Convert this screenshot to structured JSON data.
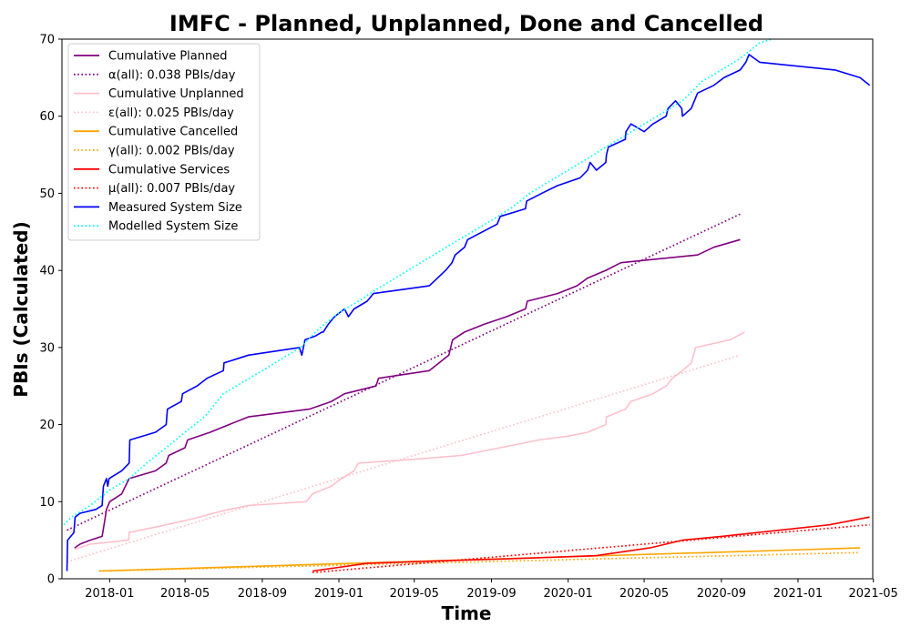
{
  "chart_data": {
    "type": "line",
    "title": "IMFC - Planned, Unplanned, Done  and Cancelled",
    "xlabel": "Time",
    "ylabel": "PBIs (Calculated)",
    "xlim": [
      "2017-10-17",
      "2021-04-30"
    ],
    "ylim": [
      0,
      70
    ],
    "x_ticks": [
      "2018-01",
      "2018-05",
      "2018-09",
      "2019-01",
      "2019-05",
      "2019-09",
      "2020-01",
      "2020-05",
      "2020-09",
      "2021-01",
      "2021-05"
    ],
    "y_ticks": [
      0,
      10,
      20,
      30,
      40,
      50,
      60,
      70
    ],
    "grid": false,
    "legend_position": "top-left",
    "series": [
      {
        "name": "Cumulative Planned",
        "style": "solid",
        "color": "#800080",
        "points": [
          [
            "2017-11-06",
            4
          ],
          [
            "2017-11-15",
            4.5
          ],
          [
            "2017-12-01",
            5
          ],
          [
            "2017-12-20",
            5.5
          ],
          [
            "2017-12-24",
            7.5
          ],
          [
            "2017-12-27",
            9
          ],
          [
            "2018-01-01",
            10
          ],
          [
            "2018-01-20",
            11
          ],
          [
            "2018-02-01",
            13
          ],
          [
            "2018-03-15",
            14
          ],
          [
            "2018-04-01",
            15
          ],
          [
            "2018-04-05",
            16
          ],
          [
            "2018-05-01",
            17
          ],
          [
            "2018-05-05",
            18
          ],
          [
            "2018-06-10",
            19
          ],
          [
            "2018-07-10",
            20
          ],
          [
            "2018-08-10",
            21
          ],
          [
            "2018-11-15",
            22
          ],
          [
            "2018-12-20",
            23
          ],
          [
            "2019-01-10",
            24
          ],
          [
            "2019-03-01",
            25
          ],
          [
            "2019-03-05",
            26
          ],
          [
            "2019-05-25",
            27
          ],
          [
            "2019-06-25",
            29
          ],
          [
            "2019-07-01",
            31
          ],
          [
            "2019-07-20",
            32
          ],
          [
            "2019-08-20",
            33
          ],
          [
            "2019-09-25",
            34
          ],
          [
            "2019-10-25",
            35
          ],
          [
            "2019-10-28",
            36
          ],
          [
            "2019-12-15",
            37
          ],
          [
            "2020-01-15",
            38
          ],
          [
            "2020-02-01",
            39
          ],
          [
            "2020-03-01",
            40
          ],
          [
            "2020-03-25",
            41
          ],
          [
            "2020-05-01",
            41.3
          ],
          [
            "2020-07-25",
            42
          ],
          [
            "2020-08-20",
            43
          ],
          [
            "2020-10-01",
            44
          ]
        ]
      },
      {
        "name": "α(all): 0.038 PBIs/day",
        "style": "dotted",
        "color": "#800080",
        "points": [
          [
            "2017-10-25",
            6.3
          ],
          [
            "2020-10-01",
            47.3
          ]
        ]
      },
      {
        "name": "Cumulative Unplanned",
        "style": "solid",
        "color": "#ffc0cb",
        "points": [
          [
            "2017-11-06",
            3.8
          ],
          [
            "2017-12-01",
            4.5
          ],
          [
            "2018-01-31",
            5
          ],
          [
            "2018-02-01",
            6
          ],
          [
            "2018-04-01",
            7
          ],
          [
            "2018-05-15",
            7.8
          ],
          [
            "2018-06-15",
            8.5
          ],
          [
            "2018-07-10",
            9
          ],
          [
            "2018-08-10",
            9.5
          ],
          [
            "2018-11-10",
            10
          ],
          [
            "2018-11-20",
            11
          ],
          [
            "2018-12-20",
            12
          ],
          [
            "2019-01-05",
            13
          ],
          [
            "2019-01-25",
            14
          ],
          [
            "2019-02-01",
            15
          ],
          [
            "2019-05-01",
            15.5
          ],
          [
            "2019-07-15",
            16
          ],
          [
            "2019-09-15",
            17
          ],
          [
            "2019-11-15",
            18
          ],
          [
            "2020-01-01",
            18.5
          ],
          [
            "2020-02-01",
            19
          ],
          [
            "2020-03-01",
            20
          ],
          [
            "2020-03-02",
            21
          ],
          [
            "2020-04-01",
            22
          ],
          [
            "2020-04-10",
            23
          ],
          [
            "2020-05-15",
            24
          ],
          [
            "2020-06-05",
            25
          ],
          [
            "2020-06-15",
            26
          ],
          [
            "2020-07-01",
            27
          ],
          [
            "2020-07-15",
            28
          ],
          [
            "2020-07-22",
            30
          ],
          [
            "2020-09-15",
            31
          ],
          [
            "2020-10-08",
            32
          ]
        ]
      },
      {
        "name": "ε(all): 0.025 PBIs/day",
        "style": "dotted",
        "color": "#ffc0cb",
        "points": [
          [
            "2017-10-25",
            2.2
          ],
          [
            "2020-10-01",
            29
          ]
        ]
      },
      {
        "name": "Cumulative Cancelled",
        "style": "solid",
        "color": "#ffa500",
        "points": [
          [
            "2017-12-15",
            1
          ],
          [
            "2021-04-10",
            4
          ]
        ]
      },
      {
        "name": "γ(all): 0.002 PBIs/day",
        "style": "dotted",
        "color": "#ffa500",
        "points": [
          [
            "2017-12-15",
            1
          ],
          [
            "2021-04-10",
            3.4
          ]
        ]
      },
      {
        "name": "Cumulative Services",
        "style": "solid",
        "color": "#ff0000",
        "points": [
          [
            "2018-11-20",
            1
          ],
          [
            "2019-02-15",
            2
          ],
          [
            "2019-06-01",
            2.3
          ],
          [
            "2019-10-01",
            2.6
          ],
          [
            "2020-02-15",
            3
          ],
          [
            "2020-05-10",
            4
          ],
          [
            "2020-07-01",
            5
          ],
          [
            "2020-09-01",
            5.5
          ],
          [
            "2021-02-20",
            7
          ],
          [
            "2021-04-25",
            8
          ]
        ]
      },
      {
        "name": "μ(all): 0.007 PBIs/day",
        "style": "dotted",
        "color": "#ff0000",
        "points": [
          [
            "2018-11-20",
            0.8
          ],
          [
            "2021-04-25",
            7
          ]
        ]
      },
      {
        "name": "Measured System Size",
        "style": "solid",
        "color": "#0000ff",
        "points": [
          [
            "2017-10-25",
            1
          ],
          [
            "2017-10-26",
            5
          ],
          [
            "2017-11-05",
            6
          ],
          [
            "2017-11-07",
            8
          ],
          [
            "2017-11-15",
            8.5
          ],
          [
            "2017-12-10",
            9
          ],
          [
            "2017-12-20",
            9.5
          ],
          [
            "2017-12-22",
            12
          ],
          [
            "2017-12-27",
            13
          ],
          [
            "2017-12-29",
            12
          ],
          [
            "2017-12-31",
            13
          ],
          [
            "2018-01-20",
            14
          ],
          [
            "2018-02-01",
            15
          ],
          [
            "2018-02-02",
            18
          ],
          [
            "2018-03-15",
            19
          ],
          [
            "2018-04-01",
            20
          ],
          [
            "2018-04-03",
            22
          ],
          [
            "2018-04-25",
            23
          ],
          [
            "2018-04-27",
            24
          ],
          [
            "2018-05-20",
            25
          ],
          [
            "2018-06-05",
            26
          ],
          [
            "2018-07-01",
            27
          ],
          [
            "2018-07-02",
            28
          ],
          [
            "2018-08-10",
            29
          ],
          [
            "2018-10-30",
            30
          ],
          [
            "2018-11-03",
            29
          ],
          [
            "2018-11-08",
            31
          ],
          [
            "2018-11-25",
            31.5
          ],
          [
            "2018-12-05",
            32
          ],
          [
            "2018-12-07",
            32
          ],
          [
            "2018-12-15",
            33
          ],
          [
            "2018-12-25",
            34
          ],
          [
            "2019-01-10",
            35
          ],
          [
            "2019-01-16",
            34
          ],
          [
            "2019-01-25",
            35
          ],
          [
            "2019-02-15",
            36
          ],
          [
            "2019-02-25",
            37
          ],
          [
            "2019-05-25",
            38
          ],
          [
            "2019-06-20",
            40
          ],
          [
            "2019-06-30",
            41
          ],
          [
            "2019-07-05",
            42
          ],
          [
            "2019-07-20",
            43
          ],
          [
            "2019-07-25",
            44
          ],
          [
            "2019-09-10",
            46
          ],
          [
            "2019-09-15",
            47
          ],
          [
            "2019-10-25",
            48
          ],
          [
            "2019-10-27",
            49
          ],
          [
            "2019-11-20",
            50
          ],
          [
            "2019-12-15",
            51
          ],
          [
            "2020-01-20",
            52
          ],
          [
            "2020-02-01",
            53
          ],
          [
            "2020-02-05",
            54
          ],
          [
            "2020-02-15",
            53
          ],
          [
            "2020-03-01",
            54
          ],
          [
            "2020-03-02",
            55
          ],
          [
            "2020-03-05",
            56
          ],
          [
            "2020-04-01",
            57
          ],
          [
            "2020-04-02",
            58
          ],
          [
            "2020-04-10",
            59
          ],
          [
            "2020-05-01",
            58
          ],
          [
            "2020-05-15",
            59
          ],
          [
            "2020-06-05",
            60
          ],
          [
            "2020-06-08",
            61
          ],
          [
            "2020-06-20",
            62
          ],
          [
            "2020-06-30",
            61
          ],
          [
            "2020-07-01",
            60
          ],
          [
            "2020-07-15",
            61
          ],
          [
            "2020-07-25",
            63
          ],
          [
            "2020-08-20",
            64
          ],
          [
            "2020-09-05",
            65
          ],
          [
            "2020-10-01",
            66
          ],
          [
            "2020-10-10",
            67
          ],
          [
            "2020-10-15",
            68
          ],
          [
            "2020-11-01",
            67
          ],
          [
            "2021-03-01",
            66
          ],
          [
            "2021-04-10",
            65
          ],
          [
            "2021-04-25",
            64
          ]
        ]
      },
      {
        "name": "Modelled System Size",
        "style": "dotted",
        "color": "#00ffff",
        "points": [
          [
            "2017-10-20",
            7
          ],
          [
            "2017-11-01",
            8
          ],
          [
            "2017-12-01",
            9.5
          ],
          [
            "2018-01-01",
            11.5
          ],
          [
            "2018-02-01",
            13
          ],
          [
            "2018-03-01",
            15
          ],
          [
            "2018-04-01",
            17
          ],
          [
            "2018-05-01",
            19
          ],
          [
            "2018-06-01",
            21
          ],
          [
            "2018-07-01",
            24
          ],
          [
            "2018-08-01",
            25.5
          ],
          [
            "2018-09-01",
            27
          ],
          [
            "2018-10-01",
            28.5
          ],
          [
            "2018-11-01",
            30
          ],
          [
            "2018-12-01",
            32.5
          ],
          [
            "2019-01-01",
            34.5
          ],
          [
            "2019-02-01",
            36
          ],
          [
            "2019-03-01",
            37.5
          ],
          [
            "2019-04-01",
            39
          ],
          [
            "2019-05-01",
            40.5
          ],
          [
            "2019-06-01",
            42
          ],
          [
            "2019-07-01",
            43.5
          ],
          [
            "2019-08-01",
            45
          ],
          [
            "2019-09-01",
            46.5
          ],
          [
            "2019-10-01",
            48
          ],
          [
            "2019-11-01",
            50
          ],
          [
            "2019-12-01",
            51.5
          ],
          [
            "2020-01-01",
            53
          ],
          [
            "2020-02-01",
            54.5
          ],
          [
            "2020-03-01",
            56
          ],
          [
            "2020-04-01",
            57.5
          ],
          [
            "2020-05-01",
            59
          ],
          [
            "2020-06-01",
            60.5
          ],
          [
            "2020-07-01",
            62
          ],
          [
            "2020-08-01",
            64.5
          ],
          [
            "2020-09-01",
            66
          ],
          [
            "2020-10-01",
            67.5
          ],
          [
            "2020-11-01",
            69.5
          ],
          [
            "2020-11-20",
            70
          ]
        ]
      }
    ]
  }
}
